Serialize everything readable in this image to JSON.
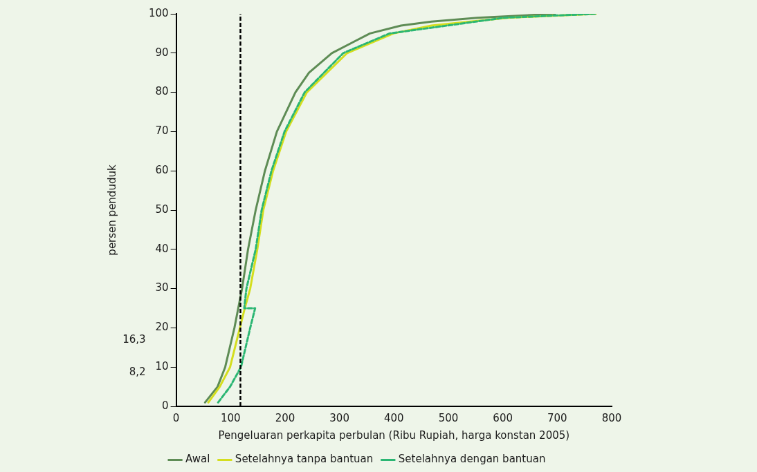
{
  "chart_data": {
    "type": "line",
    "xlabel": "Pengeluaran perkapita perbulan (Ribu Rupiah, harga konstan 2005)",
    "ylabel": "persen penduduk",
    "xlim": [
      0,
      800
    ],
    "xticks": [
      0,
      100,
      200,
      300,
      400,
      500,
      600,
      700,
      800
    ],
    "ylim": [
      0,
      100
    ],
    "yticks": [
      0,
      10,
      20,
      30,
      40,
      50,
      60,
      70,
      80,
      90,
      100
    ],
    "grid": false,
    "legend": "bottom",
    "marker": "none",
    "series": [
      {
        "name": "Awal",
        "color": "#5e8c55",
        "line_style": "solid",
        "x": [
          53,
          76,
          90,
          107,
          114,
          121,
          132,
          146,
          163,
          185,
          219,
          244,
          286,
          356,
          413,
          469,
          553,
          696
        ],
        "values": [
          1,
          5,
          10,
          20,
          25,
          30,
          40,
          50,
          60,
          70,
          80,
          85,
          90,
          95,
          97,
          98,
          99,
          100
        ]
      },
      {
        "name": "Setelahnya tanpa bantuan",
        "color": "#d4de1e",
        "line_style": "solid",
        "x": [
          59,
          80,
          99,
          117,
          126,
          136,
          149,
          160,
          178,
          202,
          240,
          314,
          399,
          469,
          609,
          771
        ],
        "values": [
          1,
          5,
          10,
          20,
          25,
          30,
          40,
          50,
          60,
          70,
          80,
          90,
          95,
          97,
          99,
          100
        ]
      },
      {
        "name": "Setelahnya dengan bantuan",
        "color": "#2bb673",
        "line_style": "dashed",
        "x": [
          77,
          99,
          119,
          136,
          145,
          125,
          129,
          146,
          157,
          175,
          199,
          236,
          307,
          392,
          602,
          771
        ],
        "values": [
          1,
          5,
          10,
          20,
          25,
          25,
          30,
          40,
          50,
          60,
          70,
          80,
          90,
          95,
          99,
          100
        ]
      }
    ],
    "ref_lines": [
      {
        "axis": "x",
        "value": 118,
        "color": "#000000",
        "line_style": "dashed"
      }
    ],
    "annotations": [
      "16,3",
      "8,2"
    ]
  }
}
